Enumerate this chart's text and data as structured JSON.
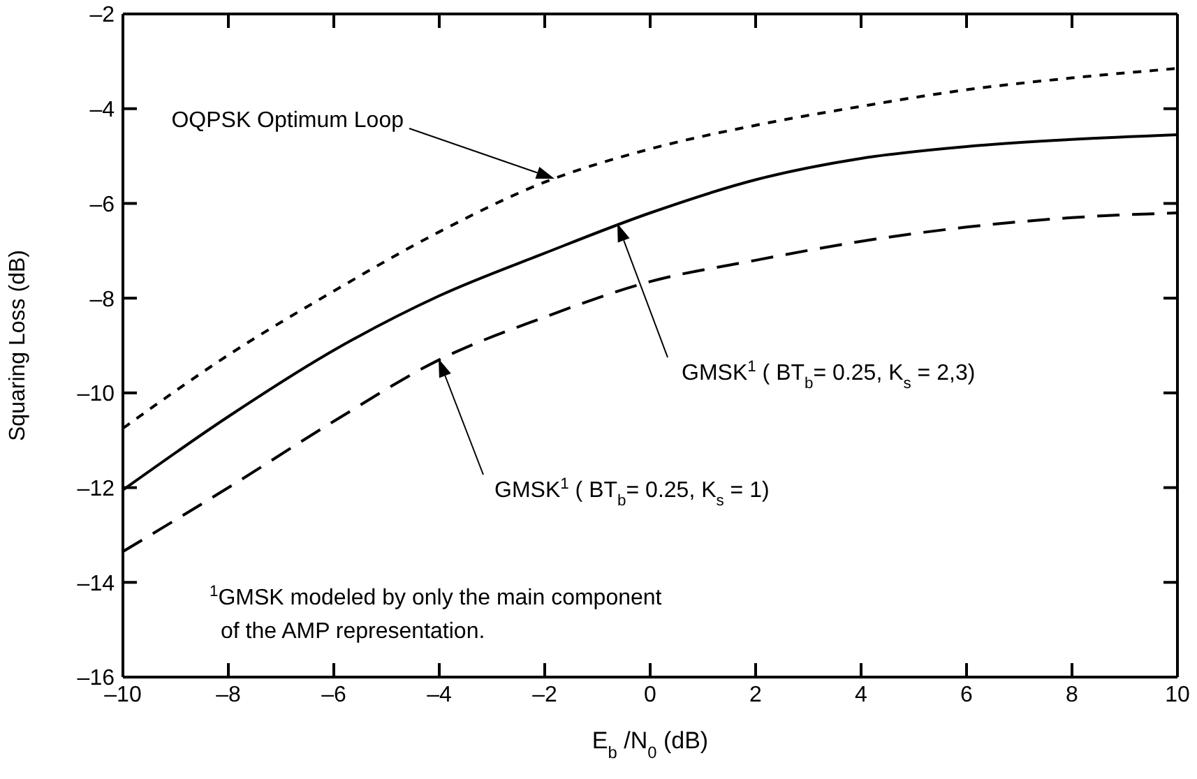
{
  "chart_data": {
    "type": "line",
    "xlabel": "E$_{b}$ /N$_{0}$ (dB)",
    "ylabel": "Squaring Loss (dB)",
    "x": [
      -10,
      -8,
      -6,
      -4,
      -2,
      0,
      2,
      4,
      6,
      8,
      10
    ],
    "series": [
      {
        "color": "#000000",
        "line_style": "dotted",
        "values": [
          -10.75,
          -9.2,
          -7.85,
          -6.6,
          -5.55,
          -4.85,
          -4.35,
          -3.95,
          -3.6,
          -3.35,
          -3.15
        ]
      },
      {
        "color": "#000000",
        "line_style": "solid",
        "values": [
          -12.05,
          -10.5,
          -9.1,
          -7.95,
          -7.05,
          -6.2,
          -5.5,
          -5.05,
          -4.8,
          -4.65,
          -4.55
        ]
      },
      {
        "color": "#000000",
        "line_style": "dashed",
        "values": [
          -13.35,
          -12.0,
          -10.6,
          -9.3,
          -8.4,
          -7.65,
          -7.2,
          -6.8,
          -6.5,
          -6.3,
          -6.2
        ]
      }
    ],
    "xlim": [
      -10,
      10
    ],
    "xticks": [
      {
        "value": -10,
        "label": "–10"
      },
      {
        "value": -8,
        "label": "–8"
      },
      {
        "value": -6,
        "label": "–6"
      },
      {
        "value": -4,
        "label": "–4"
      },
      {
        "value": -2,
        "label": "–2"
      },
      0,
      2,
      4,
      6,
      8,
      10
    ],
    "ylim": [
      -16,
      -2
    ],
    "yticks": [
      {
        "value": -16,
        "label": "–16"
      },
      {
        "value": -14,
        "label": "–14"
      },
      {
        "value": -12,
        "label": "–12"
      },
      {
        "value": -10,
        "label": "–10"
      },
      {
        "value": -8,
        "label": "–8"
      },
      {
        "value": -6,
        "label": "–6"
      },
      {
        "value": -4,
        "label": "–4"
      },
      {
        "value": -2,
        "label": "–2"
      }
    ],
    "grid": false,
    "legend": false,
    "marker": "none",
    "annotations": [
      "OQPSK Optimum Loop",
      "GMSK$^{1}$ ( BT$_{b}$= 0.25, K$_{s}$ = 2,3)",
      "GMSK$^{1}$ ( BT$_{b}$= 0.25, K$_{s}$ = 1)",
      "$^{1}$GMSK modeled by only the main component of the AMP representation."
    ]
  }
}
